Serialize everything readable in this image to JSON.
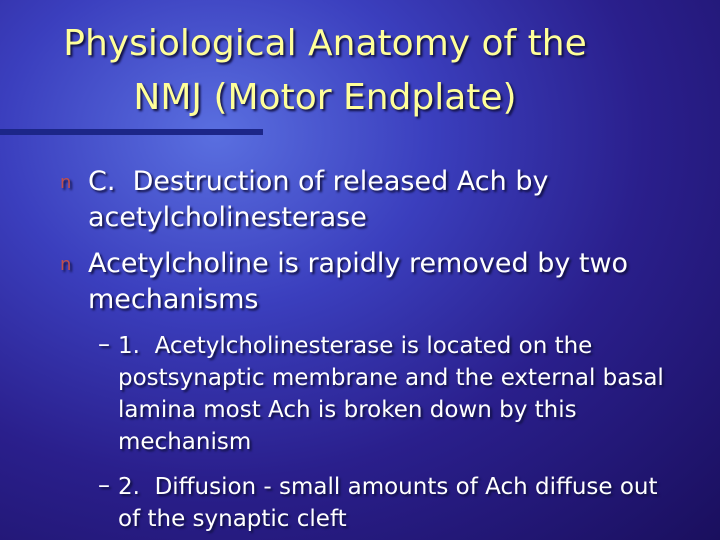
{
  "title": [
    "Physiological Anatomy of the",
    "NMJ (Motor Endplate)"
  ],
  "bullets": [
    {
      "marker": "n",
      "text": "C.  Destruction of released Ach by acetylcholinesterase"
    },
    {
      "marker": "n",
      "text": "Acetylcholine is rapidly removed by two mechanisms",
      "sub_bullets": [
        {
          "marker": "–",
          "text": "1.  Acetylcholinesterase is located on the postsynaptic membrane and the external basal lamina most Ach is broken down by this mechanism"
        },
        {
          "marker": "–",
          "text": "2.  Diffusion - small amounts of Ach diffuse out of the synaptic cleft"
        }
      ]
    }
  ]
}
